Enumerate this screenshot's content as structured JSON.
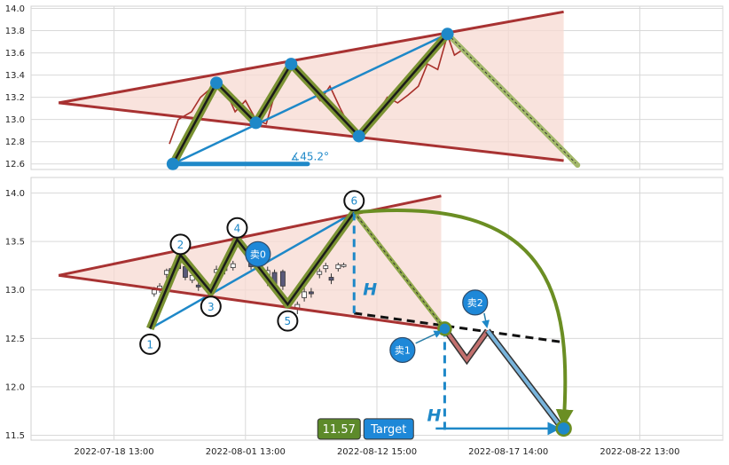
{
  "chart_data": [
    {
      "type": "line",
      "panel": "top",
      "ylim": [
        12.55,
        14.02
      ],
      "yticks": [
        "12.6",
        "12.8",
        "13.0",
        "13.2",
        "13.4",
        "13.6",
        "13.8",
        "14.0"
      ],
      "ytick_values": [
        12.6,
        12.8,
        13.0,
        13.2,
        13.4,
        13.6,
        13.8,
        14.0
      ],
      "grid": true,
      "price_series": [
        [
          0.2,
          12.78
        ],
        [
          0.213,
          13.0
        ],
        [
          0.232,
          13.07
        ],
        [
          0.245,
          13.2
        ],
        [
          0.258,
          13.27
        ],
        [
          0.27,
          13.33
        ],
        [
          0.282,
          13.25
        ],
        [
          0.295,
          13.07
        ],
        [
          0.31,
          13.17
        ],
        [
          0.325,
          13.0
        ],
        [
          0.34,
          12.96
        ],
        [
          0.352,
          13.22
        ],
        [
          0.364,
          13.38
        ],
        [
          0.376,
          13.5
        ],
        [
          0.39,
          13.37
        ],
        [
          0.405,
          13.27
        ],
        [
          0.418,
          13.17
        ],
        [
          0.432,
          13.3
        ],
        [
          0.447,
          13.1
        ],
        [
          0.461,
          12.93
        ],
        [
          0.474,
          12.87
        ],
        [
          0.487,
          12.95
        ],
        [
          0.5,
          13.05
        ],
        [
          0.515,
          13.2
        ],
        [
          0.53,
          13.15
        ],
        [
          0.545,
          13.22
        ],
        [
          0.56,
          13.3
        ],
        [
          0.573,
          13.5
        ],
        [
          0.588,
          13.45
        ],
        [
          0.602,
          13.76
        ],
        [
          0.612,
          13.58
        ],
        [
          0.622,
          13.62
        ]
      ],
      "zigzag": [
        [
          0.205,
          12.6
        ],
        [
          0.268,
          13.33
        ],
        [
          0.325,
          12.97
        ],
        [
          0.376,
          13.5
        ],
        [
          0.474,
          12.85
        ],
        [
          0.602,
          13.77
        ],
        [
          0.79,
          12.59
        ]
      ],
      "upper_trendline": [
        [
          0.04,
          13.15
        ],
        [
          0.77,
          13.97
        ]
      ],
      "lower_trendline": [
        [
          0.04,
          13.15
        ],
        [
          0.77,
          12.63
        ]
      ],
      "angle_line": [
        [
          0.205,
          12.6
        ],
        [
          0.602,
          13.77
        ]
      ],
      "angle_label": "∡45.2°"
    },
    {
      "type": "bar",
      "panel": "bottom",
      "ylim": [
        11.45,
        14.16
      ],
      "yticks": [
        "11.5",
        "12.0",
        "12.5",
        "13.0",
        "13.5",
        "14.0"
      ],
      "ytick_values": [
        11.5,
        12.0,
        12.5,
        13.0,
        13.5,
        14.0
      ],
      "xticks": [
        "2022-07-18 13:00",
        "2022-08-01 13:00",
        "2022-08-12 15:00",
        "2022-08-17 14:00",
        "2022-08-22 13:00"
      ],
      "xtick_positions": [
        0.12,
        0.31,
        0.5,
        0.69,
        0.88
      ],
      "grid": true,
      "candles": [
        [
          0.178,
          12.96,
          13.0,
          12.93,
          13.03
        ],
        [
          0.186,
          13.0,
          13.04,
          12.97,
          13.07
        ],
        [
          0.196,
          13.16,
          13.2,
          13.12,
          13.22
        ],
        [
          0.203,
          13.22,
          13.2,
          13.15,
          13.24
        ],
        [
          0.213,
          13.28,
          13.22,
          13.2,
          13.31
        ],
        [
          0.223,
          13.24,
          13.13,
          13.1,
          13.27
        ],
        [
          0.233,
          13.1,
          13.15,
          13.07,
          13.18
        ],
        [
          0.242,
          13.05,
          13.03,
          12.99,
          13.1
        ],
        [
          0.268,
          13.18,
          13.21,
          13.13,
          13.25
        ],
        [
          0.28,
          13.2,
          13.24,
          13.16,
          13.28
        ],
        [
          0.292,
          13.23,
          13.27,
          13.2,
          13.3
        ],
        [
          0.318,
          13.28,
          13.24,
          13.21,
          13.31
        ],
        [
          0.33,
          13.26,
          13.3,
          13.2,
          13.34
        ],
        [
          0.342,
          13.12,
          13.2,
          13.04,
          13.24
        ],
        [
          0.352,
          13.18,
          13.06,
          13.01,
          13.21
        ],
        [
          0.364,
          13.19,
          13.04,
          13.0,
          13.21
        ],
        [
          0.385,
          12.8,
          12.85,
          12.75,
          12.88
        ],
        [
          0.395,
          12.92,
          12.98,
          12.88,
          13.02
        ],
        [
          0.405,
          12.98,
          12.96,
          12.92,
          13.02
        ],
        [
          0.417,
          13.16,
          13.19,
          13.12,
          13.22
        ],
        [
          0.426,
          13.22,
          13.25,
          13.18,
          13.28
        ],
        [
          0.434,
          13.13,
          13.1,
          13.06,
          13.17
        ],
        [
          0.444,
          13.22,
          13.26,
          13.19,
          13.28
        ],
        [
          0.452,
          13.25,
          13.26,
          13.23,
          13.28
        ]
      ],
      "zigzag": [
        [
          0.172,
          12.6
        ],
        [
          0.216,
          13.36
        ],
        [
          0.26,
          12.98
        ],
        [
          0.298,
          13.52
        ],
        [
          0.371,
          12.85
        ],
        [
          0.467,
          13.8
        ],
        [
          0.598,
          12.6
        ]
      ],
      "point_labels": [
        "1",
        "2",
        "3",
        "4",
        "5",
        "6"
      ],
      "label_points": [
        [
          0.172,
          12.44
        ],
        [
          0.216,
          13.47
        ],
        [
          0.26,
          12.83
        ],
        [
          0.298,
          13.64
        ],
        [
          0.371,
          12.68
        ],
        [
          0.467,
          13.92
        ]
      ],
      "upper_trendline": [
        [
          0.04,
          13.15
        ],
        [
          0.593,
          13.97
        ]
      ],
      "lower_trendline": [
        [
          0.04,
          13.15
        ],
        [
          0.593,
          12.6
        ]
      ],
      "lower_extension": [
        [
          0.467,
          12.76
        ],
        [
          0.77,
          12.46
        ]
      ],
      "sell_path": [
        [
          0.598,
          12.6
        ],
        [
          0.63,
          12.28
        ],
        [
          0.66,
          12.58
        ]
      ],
      "target_path": [
        [
          0.66,
          12.58
        ],
        [
          0.77,
          11.55
        ]
      ],
      "sell_labels": [
        "卖0",
        "卖1",
        "卖2"
      ],
      "height_label": "H",
      "target_value": "11.57",
      "target_label": "Target"
    }
  ],
  "colors": {
    "trend": "#a83232",
    "pattern_fill": "#f7d9d2",
    "price": "#a8302a",
    "zigzag_outer": "#7a9232",
    "zigzag_inner": "#1a1a1a",
    "angle": "#1e88c8",
    "sell_badge": "#1e88d8",
    "target_badge": "#1e88d8",
    "value_badge": "#5d8a2a",
    "arc": "#6b8e23",
    "candle_up": "#ffffff",
    "candle_down": "#5a5a7a"
  }
}
